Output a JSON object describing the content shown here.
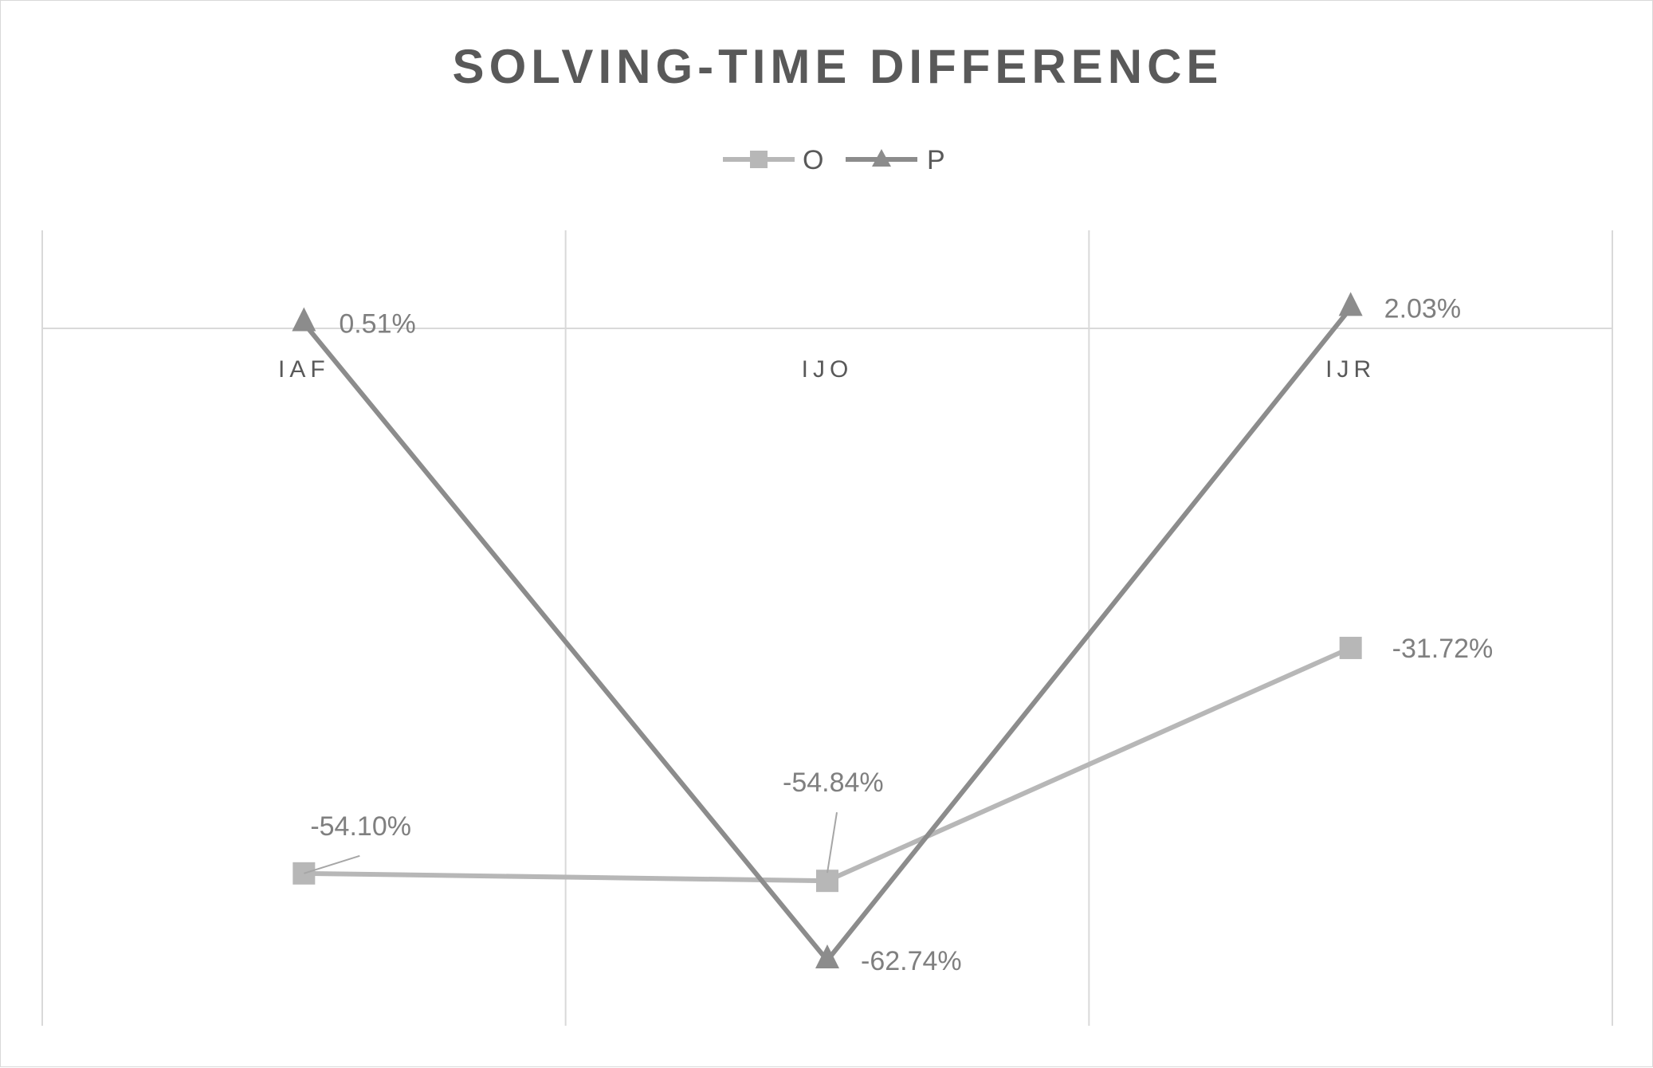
{
  "chart_data": {
    "type": "line",
    "title": "SOLVING-TIME DIFFERENCE",
    "categories": [
      "IAF",
      "IJO",
      "IJR"
    ],
    "series": [
      {
        "name": "O",
        "values": [
          -54.1,
          -54.84,
          -31.72
        ],
        "labels": [
          "-54.10%",
          "-54.84%",
          "-31.72%"
        ],
        "color": "#b7b7b7",
        "marker": "square"
      },
      {
        "name": "P",
        "values": [
          0.51,
          -62.74,
          2.03
        ],
        "labels": [
          "0.51%",
          "-62.74%",
          "2.03%"
        ],
        "color": "#8c8c8c",
        "marker": "triangle"
      }
    ],
    "ylim": [
      -70,
      10
    ],
    "grid": "vertical",
    "legend": "top-center",
    "axis_color": "#d9d9d9"
  }
}
